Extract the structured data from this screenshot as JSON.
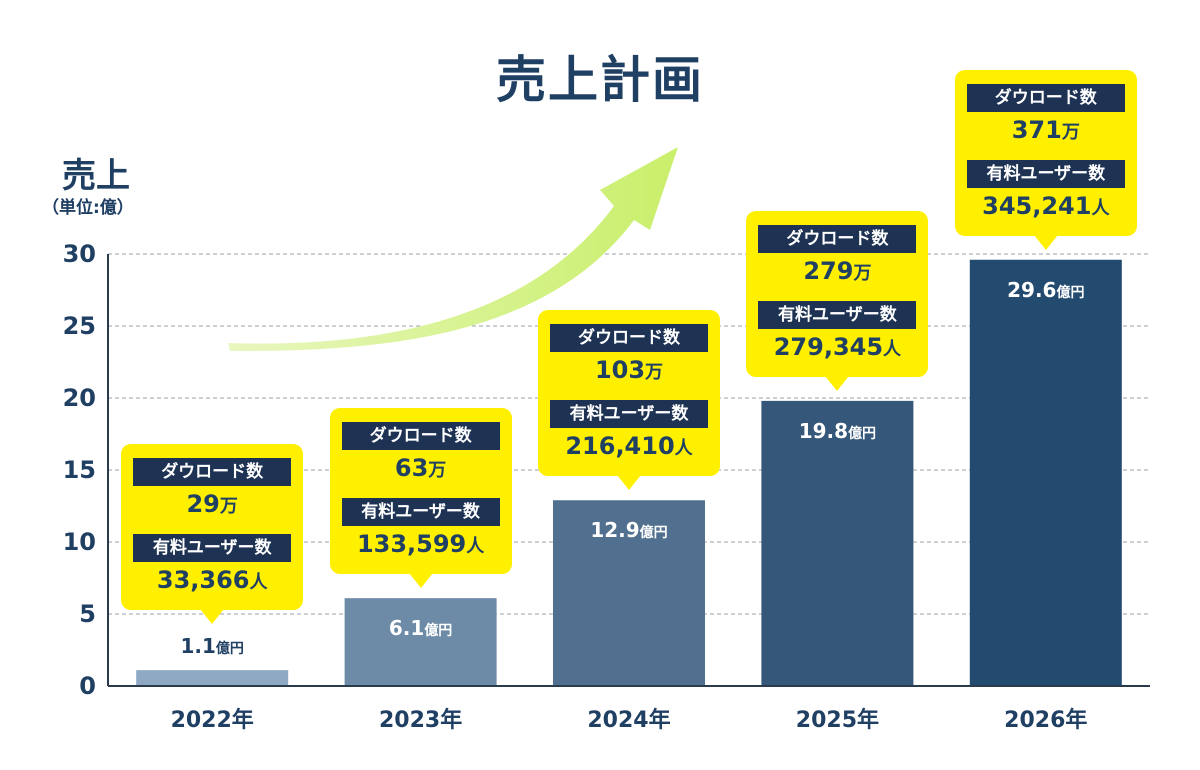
{
  "title": "売上計画",
  "chart_data": {
    "type": "bar",
    "title": "売上計画",
    "ylabel": "売上",
    "yunit": "（単位:億）",
    "ylim": [
      0,
      30
    ],
    "yticks": [
      "0",
      "5",
      "10",
      "15",
      "20",
      "25",
      "30"
    ],
    "grid": true,
    "categories": [
      "2022年",
      "2023年",
      "2024年",
      "2025年",
      "2026年"
    ],
    "values": [
      1.1,
      6.1,
      12.9,
      19.8,
      29.6
    ],
    "value_labels": [
      "1.1",
      "6.1",
      "12.9",
      "19.8",
      "29.6"
    ],
    "value_unit": "億円",
    "bar_colors": [
      "#8fa9c4",
      "#6d8aa6",
      "#51708f",
      "#35577a",
      "#234b70"
    ],
    "label_colors": [
      "#1f3f63",
      "#ffffff",
      "#ffffff",
      "#ffffff",
      "#ffffff"
    ],
    "annotations": [
      {
        "downloads_label": "ダウロード数",
        "downloads": "29",
        "downloads_unit": "万",
        "users_label": "有料ユーザー数",
        "users": "33,366",
        "users_unit": "人"
      },
      {
        "downloads_label": "ダウロード数",
        "downloads": "63",
        "downloads_unit": "万",
        "users_label": "有料ユーザー数",
        "users": "133,599",
        "users_unit": "人"
      },
      {
        "downloads_label": "ダウロード数",
        "downloads": "103",
        "downloads_unit": "万",
        "users_label": "有料ユーザー数",
        "users": "216,410",
        "users_unit": "人"
      },
      {
        "downloads_label": "ダウロード数",
        "downloads": "279",
        "downloads_unit": "万",
        "users_label": "有料ユーザー数",
        "users": "279,345",
        "users_unit": "人"
      },
      {
        "downloads_label": "ダウロード数",
        "downloads": "371",
        "downloads_unit": "万",
        "users_label": "有料ユーザー数",
        "users": "345,241",
        "users_unit": "人"
      }
    ]
  },
  "colors": {
    "title": "#1f3f63",
    "callout": "#fff000",
    "callout_label_bg": "#1e3354",
    "arrow": "#d6f27e"
  }
}
